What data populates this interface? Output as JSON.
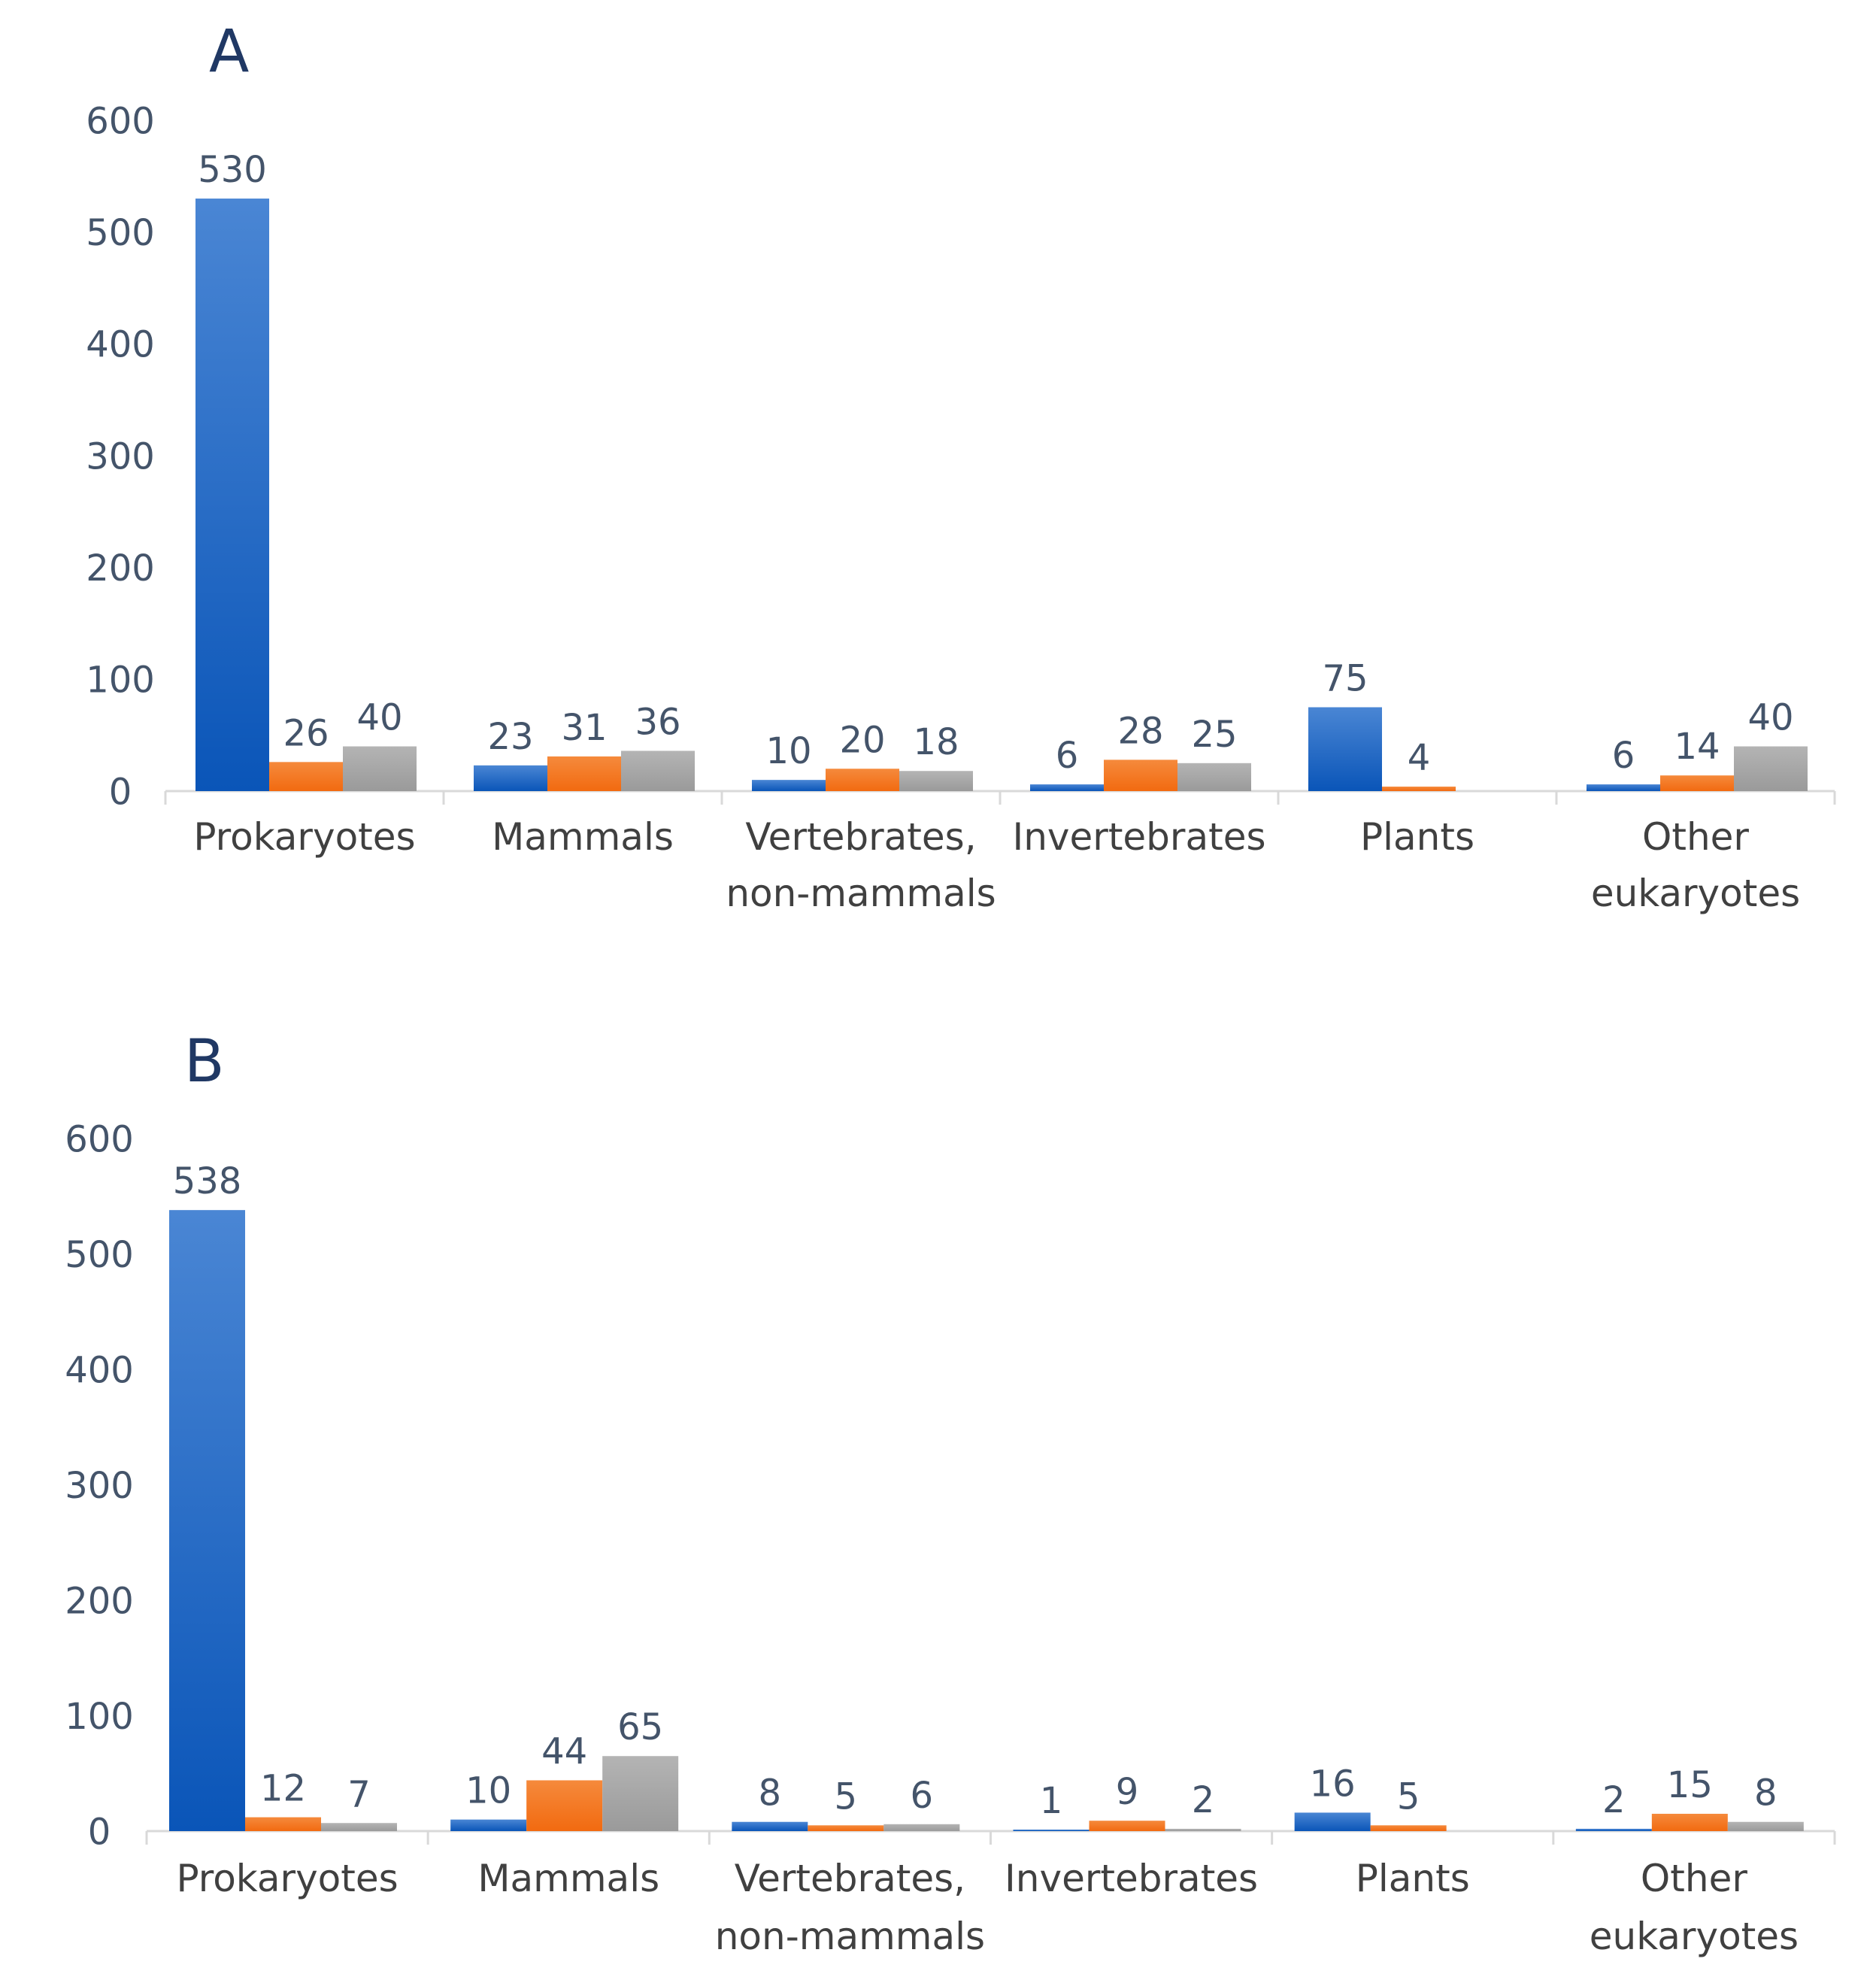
{
  "chart_data": [
    {
      "type": "bar",
      "panel_label": "A",
      "categories": [
        "Prokaryotes",
        "Mammals",
        "Vertebrates, non-mammals",
        "Invertebrates",
        "Plants",
        "Other eukaryotes"
      ],
      "category_lines": [
        [
          "Prokaryotes"
        ],
        [
          "Mammals"
        ],
        [
          "Vertebrates,",
          "non-mammals"
        ],
        [
          "Invertebrates"
        ],
        [
          "Plants"
        ],
        [
          "Other",
          "eukaryotes"
        ]
      ],
      "series": [
        {
          "name": "blue",
          "color": "#1565c0",
          "values": [
            530,
            23,
            10,
            6,
            75,
            6
          ]
        },
        {
          "name": "orange",
          "color": "#f47920",
          "values": [
            26,
            31,
            20,
            28,
            4,
            14
          ]
        },
        {
          "name": "gray",
          "color": "#a5a5a5",
          "values": [
            40,
            36,
            18,
            25,
            null,
            40
          ]
        }
      ],
      "y_ticks": [
        0,
        100,
        200,
        300,
        400,
        500,
        600
      ],
      "ylim": [
        0,
        600
      ],
      "grid": false,
      "legend": "none"
    },
    {
      "type": "bar",
      "panel_label": "B",
      "categories": [
        "Prokaryotes",
        "Mammals",
        "Vertebrates, non-mammals",
        "Invertebrates",
        "Plants",
        "Other eukaryotes"
      ],
      "category_lines": [
        [
          "Prokaryotes"
        ],
        [
          "Mammals"
        ],
        [
          "Vertebrates,",
          "non-mammals"
        ],
        [
          "Invertebrates"
        ],
        [
          "Plants"
        ],
        [
          "Other",
          "eukaryotes"
        ]
      ],
      "series": [
        {
          "name": "blue",
          "color": "#1565c0",
          "values": [
            538,
            10,
            8,
            1,
            16,
            2
          ]
        },
        {
          "name": "orange",
          "color": "#f47920",
          "values": [
            12,
            44,
            5,
            9,
            5,
            15
          ]
        },
        {
          "name": "gray",
          "color": "#a5a5a5",
          "values": [
            7,
            65,
            6,
            2,
            null,
            8
          ]
        }
      ],
      "y_ticks": [
        0,
        100,
        200,
        300,
        400,
        500,
        600
      ],
      "ylim": [
        0,
        600
      ],
      "grid": false,
      "legend": "none"
    }
  ]
}
